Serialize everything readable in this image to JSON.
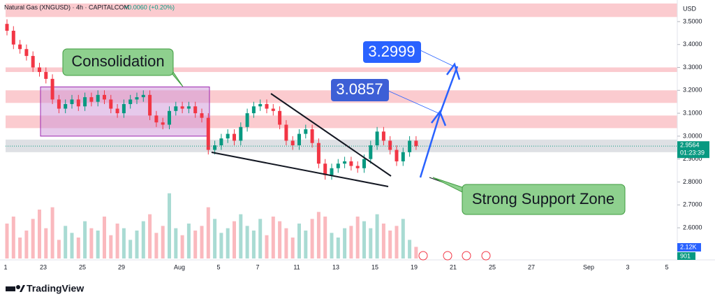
{
  "header": {
    "symbol": "Natural Gas (XNGUSD) · 4h · CAPITALCOM",
    "change": "+0.0060 (+0.20%)",
    "currency": "USD"
  },
  "chart_data": {
    "type": "candlestick",
    "open": [
      3.49,
      3.46,
      3.4,
      3.38,
      3.35,
      3.3,
      3.28,
      3.25,
      3.16,
      3.12,
      3.14,
      3.16,
      3.13,
      3.17,
      3.15,
      3.18,
      3.16,
      3.12,
      3.1,
      3.14,
      3.16,
      3.17,
      3.18,
      3.09,
      3.06,
      3.05,
      3.11,
      3.13,
      3.12,
      3.13,
      3.1,
      3.08,
      2.94,
      2.96,
      2.99,
      3.01,
      2.98,
      3.04,
      3.1,
      3.13,
      3.14,
      3.12,
      3.11,
      3.05,
      2.98,
      2.96,
      3.01,
      3.03,
      2.97,
      2.88,
      2.83,
      2.86,
      2.88,
      2.89,
      2.87,
      2.86,
      2.9,
      2.96,
      3.02,
      2.98,
      2.94,
      2.89,
      2.93,
      2.98
    ],
    "high": [
      3.51,
      3.48,
      3.42,
      3.4,
      3.37,
      3.32,
      3.3,
      3.27,
      3.18,
      3.16,
      3.18,
      3.18,
      3.19,
      3.19,
      3.2,
      3.2,
      3.18,
      3.14,
      3.16,
      3.18,
      3.19,
      3.2,
      3.2,
      3.11,
      3.08,
      3.13,
      3.15,
      3.15,
      3.15,
      3.15,
      3.12,
      3.1,
      2.98,
      3.01,
      3.03,
      3.03,
      3.06,
      3.12,
      3.15,
      3.16,
      3.16,
      3.14,
      3.13,
      3.07,
      3.0,
      3.03,
      3.05,
      3.05,
      2.99,
      2.9,
      2.88,
      2.9,
      2.91,
      2.91,
      2.89,
      2.92,
      2.98,
      3.04,
      3.04,
      3.0,
      2.96,
      2.95,
      3.0,
      3.0
    ],
    "low": [
      3.44,
      3.38,
      3.36,
      3.33,
      3.28,
      3.26,
      3.23,
      3.14,
      3.1,
      3.1,
      3.12,
      3.11,
      3.11,
      3.13,
      3.13,
      3.14,
      3.1,
      3.08,
      3.08,
      3.12,
      3.14,
      3.15,
      3.07,
      3.04,
      3.03,
      3.03,
      3.09,
      3.1,
      3.1,
      3.08,
      3.06,
      2.92,
      2.92,
      2.94,
      2.97,
      2.96,
      2.96,
      3.02,
      3.08,
      3.11,
      3.1,
      3.09,
      3.03,
      2.96,
      2.94,
      2.94,
      2.99,
      2.95,
      2.86,
      2.81,
      2.81,
      2.84,
      2.86,
      2.85,
      2.84,
      2.84,
      2.88,
      2.94,
      2.96,
      2.92,
      2.87,
      2.87,
      2.91,
      2.94
    ],
    "close": [
      3.46,
      3.4,
      3.38,
      3.35,
      3.3,
      3.28,
      3.25,
      3.16,
      3.12,
      3.14,
      3.16,
      3.13,
      3.17,
      3.15,
      3.18,
      3.16,
      3.12,
      3.1,
      3.14,
      3.16,
      3.17,
      3.18,
      3.09,
      3.06,
      3.05,
      3.11,
      3.13,
      3.12,
      3.13,
      3.1,
      3.08,
      2.94,
      2.96,
      2.99,
      3.01,
      2.98,
      3.04,
      3.1,
      3.13,
      3.14,
      3.12,
      3.11,
      3.05,
      2.98,
      2.96,
      3.01,
      3.03,
      2.97,
      2.88,
      2.83,
      2.86,
      2.88,
      2.89,
      2.87,
      2.86,
      2.9,
      2.96,
      3.02,
      2.98,
      2.94,
      2.89,
      2.93,
      2.98,
      2.956
    ],
    "volume": [
      1500,
      1800,
      900,
      1200,
      1700,
      2100,
      1300,
      2200,
      800,
      1400,
      1100,
      900,
      1600,
      1300,
      1200,
      1800,
      1000,
      1500,
      1300,
      800,
      1200,
      1600,
      1900,
      1100,
      1400,
      2800,
      1300,
      1000,
      1500,
      1200,
      1400,
      2200,
      1700,
      1100,
      1300,
      1600,
      1900,
      1400,
      1200,
      1700,
      1000,
      1800,
      1600,
      1300,
      900,
      1500,
      1200,
      1700,
      2000,
      1800,
      1100,
      900,
      1300,
      1400,
      1800,
      1600,
      1300,
      1900,
      1500,
      1200,
      1400,
      1700,
      800,
      500
    ],
    "up_color": "#089981",
    "down_color": "#f23645",
    "ylim": [
      2.466,
      3.579
    ],
    "yticks": [
      {
        "value": 3.5,
        "label": "3.5000"
      },
      {
        "value": 3.4,
        "label": "3.4000"
      },
      {
        "value": 3.3,
        "label": "3.3000"
      },
      {
        "value": 3.2,
        "label": "3.2000"
      },
      {
        "value": 3.1,
        "label": "3.1000"
      },
      {
        "value": 3.0,
        "label": "3.0000"
      },
      {
        "value": 2.9,
        "label": "2.9000"
      },
      {
        "value": 2.8,
        "label": "2.8000"
      },
      {
        "value": 2.7,
        "label": "2.7000"
      },
      {
        "value": 2.6,
        "label": "2.6000"
      }
    ],
    "vlim": [
      0,
      3000
    ],
    "x_labels": [
      "1",
      "23",
      "25",
      "29",
      "Aug",
      "5",
      "7",
      "11",
      "13",
      "15",
      "19",
      "21",
      "25",
      "27",
      "Sep",
      "3",
      "5"
    ],
    "resistance_zones": [
      [
        3.52,
        3.579
      ],
      [
        3.28,
        3.3
      ],
      [
        3.145,
        3.2
      ],
      [
        3.035,
        3.09
      ]
    ],
    "support_zone": [
      2.93,
      2.985
    ],
    "last_price": {
      "value": 2.9564,
      "label": "2.9564",
      "countdown": "01:23:39"
    },
    "volume_labels": [
      "2.12K",
      "901"
    ],
    "consolidation": {
      "label": "Consolidation",
      "top": 3.215,
      "bottom": 3.0
    },
    "targets": [
      {
        "value": 3.2999,
        "label": "3.2999"
      },
      {
        "value": 3.0857,
        "label": "3.0857"
      }
    ],
    "support_label": "Strong Support Zone"
  },
  "footer": {
    "logo": "TradingView"
  }
}
